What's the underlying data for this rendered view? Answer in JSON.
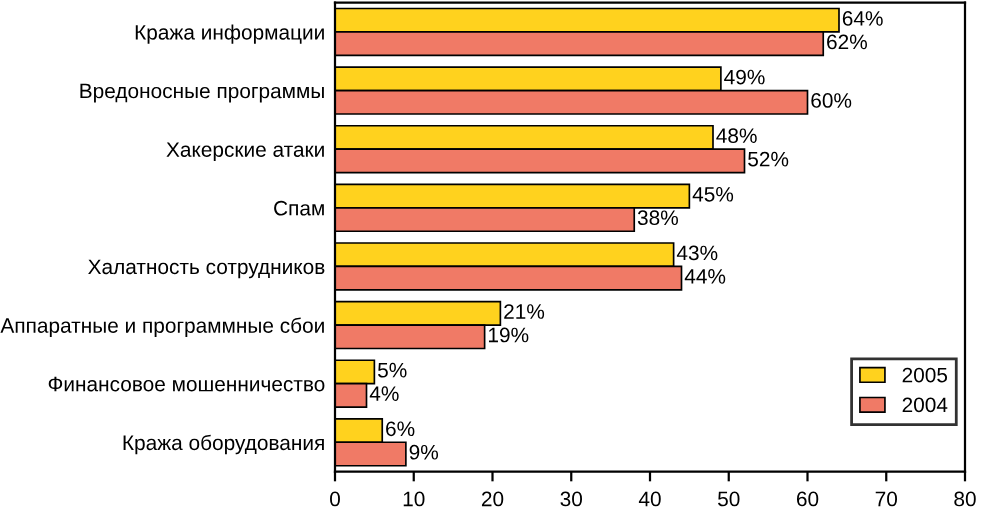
{
  "chart_data": {
    "type": "bar",
    "orientation": "horizontal",
    "categories": [
      "Кража информации",
      "Вредоносные программы",
      "Хакерские атаки",
      "Спам",
      "Халатность сотрудников",
      "Аппаратные и программные сбои",
      "Финансовое мошенничество",
      "Кража оборудования"
    ],
    "series": [
      {
        "name": "2005",
        "color": "#ffd21e",
        "values": [
          64,
          49,
          48,
          45,
          43,
          21,
          5,
          6
        ],
        "value_labels": [
          "64%",
          "49%",
          "48%",
          "45%",
          "43%",
          "21%",
          "5%",
          "6%"
        ]
      },
      {
        "name": "2004",
        "color": "#f07a66",
        "values": [
          62,
          60,
          52,
          38,
          44,
          19,
          4,
          9
        ],
        "value_labels": [
          "62%",
          "60%",
          "52%",
          "38%",
          "44%",
          "19%",
          "4%",
          "9%"
        ]
      }
    ],
    "xlim": [
      0,
      80
    ],
    "xticks": [
      0,
      10,
      20,
      30,
      40,
      50,
      60,
      70,
      80
    ],
    "grid": false,
    "legend": "bottom right"
  }
}
